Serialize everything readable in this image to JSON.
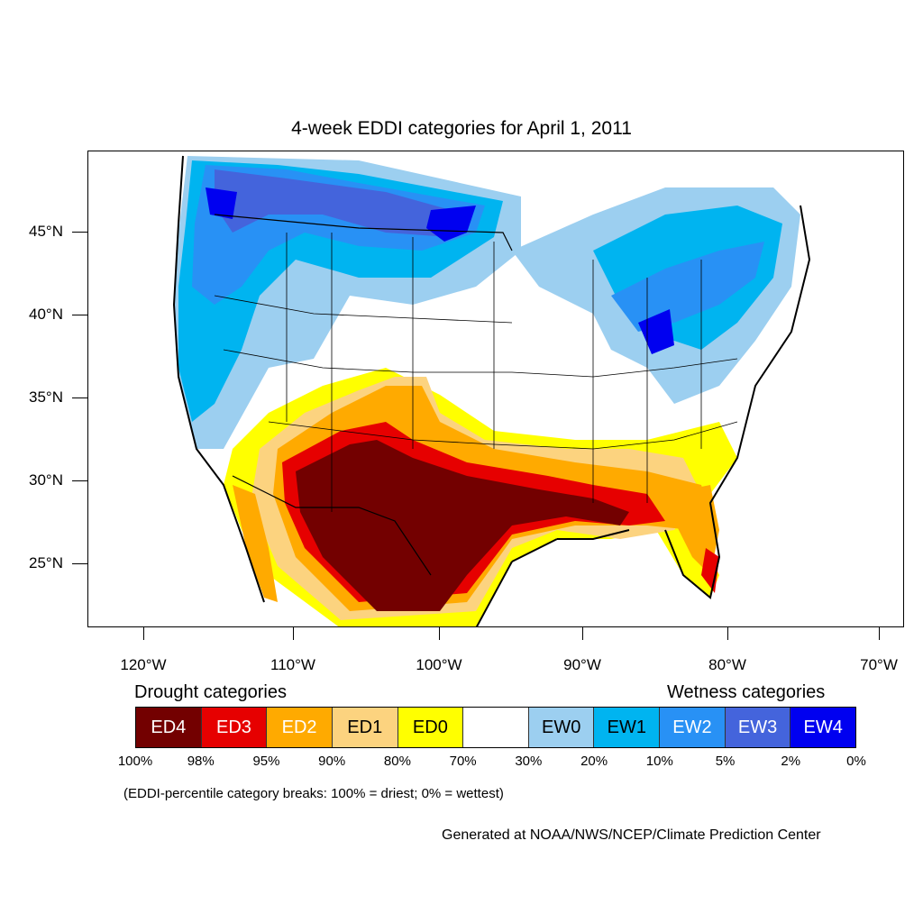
{
  "title": "4-week EDDI categories for April 1, 2011",
  "lat_labels": [
    "45°N",
    "40°N",
    "35°N",
    "30°N",
    "25°N"
  ],
  "lon_labels": [
    "120°W",
    "110°W",
    "100°W",
    "90°W",
    "80°W",
    "70°W"
  ],
  "legend": {
    "drought_heading": "Drought categories",
    "wetness_heading": "Wetness categories",
    "categories": [
      {
        "label": "ED4",
        "color": "#730000",
        "text_color": "#ffffff"
      },
      {
        "label": "ED3",
        "color": "#e60000",
        "text_color": "#ffffff"
      },
      {
        "label": "ED2",
        "color": "#ffaa00",
        "text_color": "#ffffff"
      },
      {
        "label": "ED1",
        "color": "#fcd37f",
        "text_color": "#000000"
      },
      {
        "label": "ED0",
        "color": "#ffff00",
        "text_color": "#000000"
      },
      {
        "label": "",
        "color": "#ffffff",
        "text_color": "#000000"
      },
      {
        "label": "EW0",
        "color": "#9ccff0",
        "text_color": "#000000"
      },
      {
        "label": "EW1",
        "color": "#00b4f0",
        "text_color": "#000000"
      },
      {
        "label": "EW2",
        "color": "#2891f5",
        "text_color": "#ffffff"
      },
      {
        "label": "EW3",
        "color": "#4464dc",
        "text_color": "#ffffff"
      },
      {
        "label": "EW4",
        "color": "#0000f0",
        "text_color": "#ffffff"
      }
    ],
    "percentiles": [
      "100%",
      "98%",
      "95%",
      "90%",
      "80%",
      "70%",
      "30%",
      "20%",
      "10%",
      "5%",
      "2%",
      "0%"
    ]
  },
  "note": "(EDDI-percentile category breaks: 100% = driest; 0% = wettest)",
  "credit": "Generated at NOAA/NWS/NCEP/Climate Prediction Center"
}
